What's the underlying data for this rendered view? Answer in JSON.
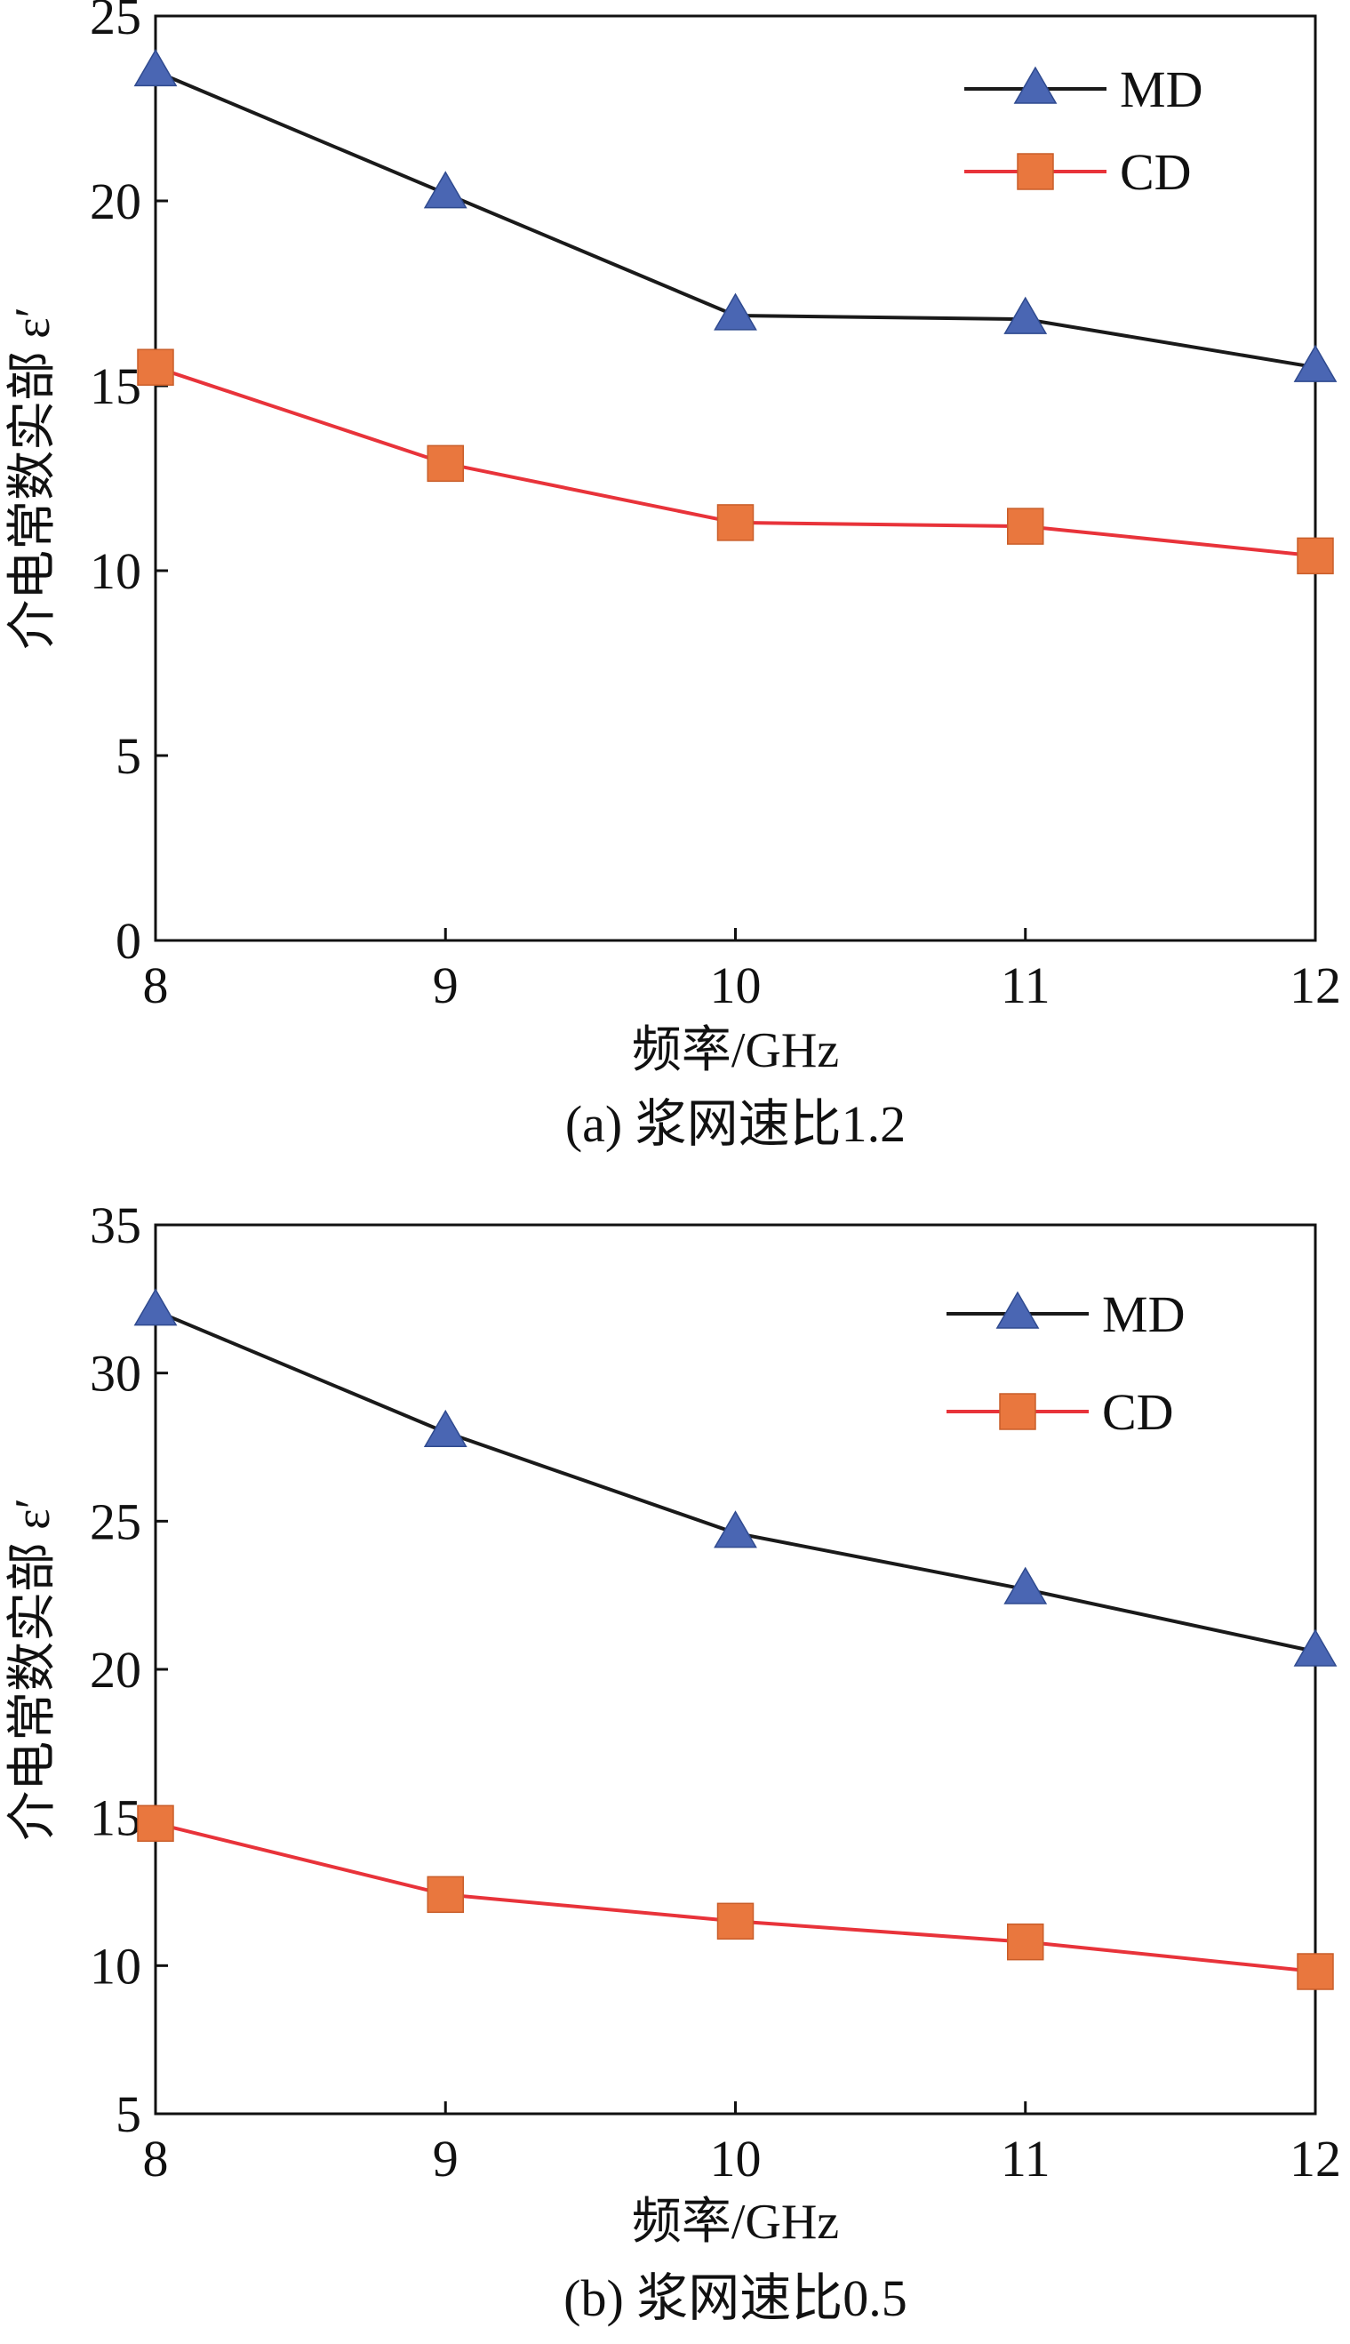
{
  "colors": {
    "md_line": "#1a1a1a",
    "md_marker": "#4a66b3",
    "cd_line": "#e8333a",
    "cd_marker": "#e9773e",
    "axis": "#111111"
  },
  "chart_data": [
    {
      "type": "line",
      "panel": "a",
      "caption": "(a) 浆网速比1.2",
      "xlabel": "频率/GHz",
      "ylabel": "介电常数实部 ε′",
      "x": [
        8,
        9,
        10,
        11,
        12
      ],
      "xlim": [
        8,
        12
      ],
      "xticks": [
        "8",
        "9",
        "10",
        "11",
        "12"
      ],
      "ylim": [
        0,
        25
      ],
      "yticks": [
        "0",
        "5",
        "10",
        "15",
        "20",
        "25"
      ],
      "grid": false,
      "legend_position": "top-right",
      "series": [
        {
          "name": "MD",
          "marker": "triangle",
          "values": [
            23.5,
            20.2,
            16.9,
            16.8,
            15.5
          ]
        },
        {
          "name": "CD",
          "marker": "square",
          "values": [
            15.5,
            12.9,
            11.3,
            11.2,
            10.4
          ]
        }
      ]
    },
    {
      "type": "line",
      "panel": "b",
      "caption": "(b) 浆网速比0.5",
      "xlabel": "频率/GHz",
      "ylabel": "介电常数实部 ε′",
      "x": [
        8,
        9,
        10,
        11,
        12
      ],
      "xlim": [
        8,
        12
      ],
      "xticks": [
        "8",
        "9",
        "10",
        "11",
        "12"
      ],
      "ylim": [
        5,
        35
      ],
      "yticks": [
        "5",
        "10",
        "15",
        "20",
        "25",
        "30",
        "35"
      ],
      "grid": false,
      "legend_position": "top-right",
      "series": [
        {
          "name": "MD",
          "marker": "triangle",
          "values": [
            32.1,
            28.0,
            24.6,
            22.7,
            20.6
          ]
        },
        {
          "name": "CD",
          "marker": "square",
          "values": [
            14.8,
            12.4,
            11.5,
            10.8,
            9.8
          ]
        }
      ]
    }
  ]
}
